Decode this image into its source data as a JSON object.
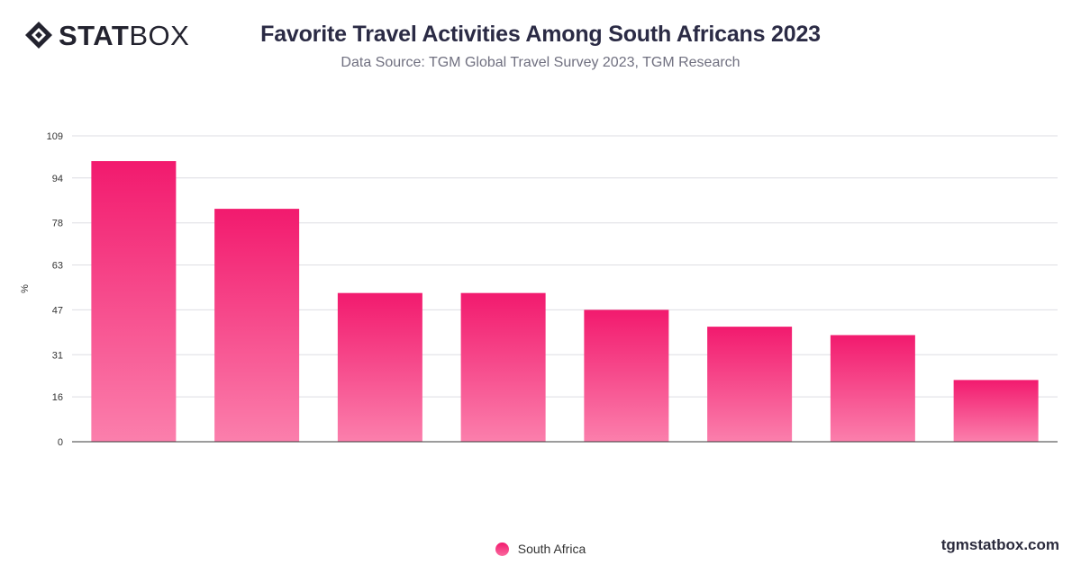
{
  "brand": {
    "bold": "STAT",
    "light": "BOX",
    "url": "tgmstatbox.com"
  },
  "colors": {
    "bar_top": "#f21a6e",
    "bar_bottom": "#fb7fac",
    "grid": "#dedee3",
    "axis": "#3a3a3a"
  },
  "chart_data": {
    "type": "bar",
    "title": "Favorite Travel Activities Among South Africans 2023",
    "subtitle": "Data Source: TGM Global Travel Survey 2023, TGM Research",
    "ylabel": "%",
    "xlabel": "",
    "ylim": [
      0,
      109
    ],
    "yticks": [
      0,
      16,
      31,
      47,
      63,
      78,
      94,
      109
    ],
    "grid": true,
    "legend_position": "bottom-center",
    "categories": [
      "",
      "",
      "",
      "",
      "",
      "",
      "",
      ""
    ],
    "series": [
      {
        "name": "South Africa",
        "values": [
          100,
          83,
          53,
          53,
          47,
          41,
          38,
          22
        ]
      }
    ]
  }
}
